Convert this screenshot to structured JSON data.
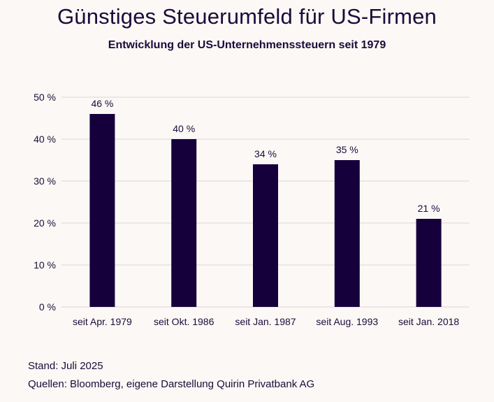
{
  "chart_data": {
    "type": "bar",
    "title": "Günstiges Steuerumfeld für US-Firmen",
    "subtitle": "Entwicklung der US-Unternehmenssteuern seit 1979",
    "categories": [
      "seit Apr. 1979",
      "seit Okt. 1986",
      "seit Jan. 1987",
      "seit Aug. 1993",
      "seit Jan. 2018"
    ],
    "values": [
      46,
      40,
      34,
      35,
      21
    ],
    "value_labels": [
      "46 %",
      "40 %",
      "34 %",
      "35 %",
      "21 %"
    ],
    "y_ticks": [
      0,
      10,
      20,
      30,
      40,
      50
    ],
    "y_tick_labels": [
      "0 %",
      "10 %",
      "20 %",
      "30 %",
      "40 %",
      "50 %"
    ],
    "ylim": [
      0,
      50
    ],
    "xlabel": "",
    "ylabel": "",
    "grid": true,
    "bar_color": "#15003c",
    "grid_color": "#dcd6d6"
  },
  "footer": {
    "stand": "Stand: Juli 2025",
    "sources": "Quellen: Bloomberg, eigene Darstellung Quirin Privatbank AG"
  }
}
